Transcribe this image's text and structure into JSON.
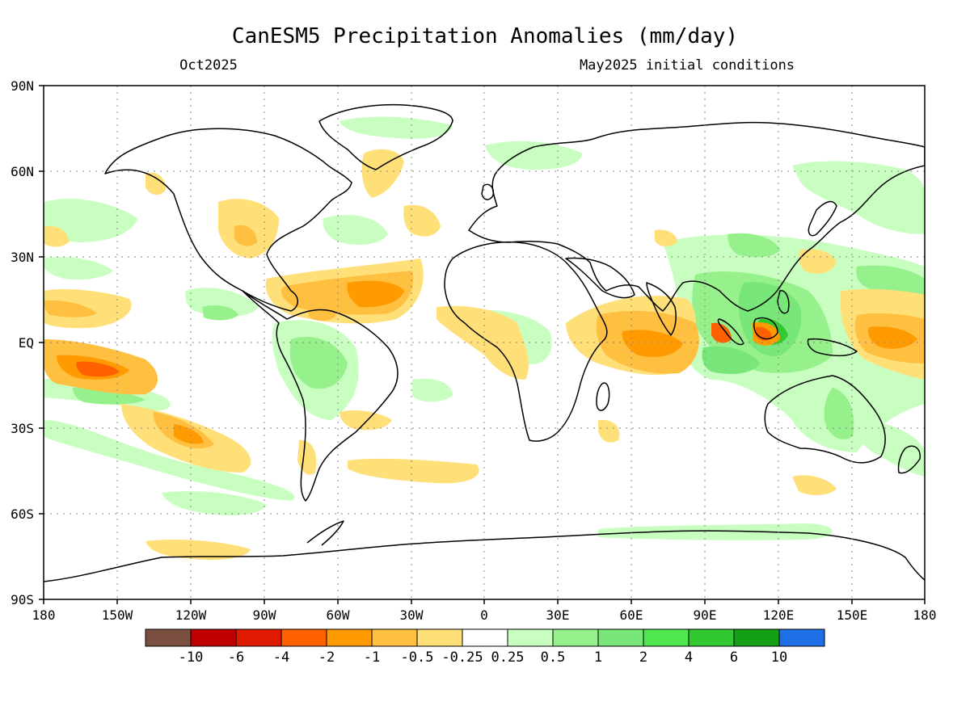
{
  "title": "CanESM5 Precipitation Anomalies (mm/day)",
  "subtitle_left": "Oct2025",
  "subtitle_right": "May2025 initial conditions",
  "lat_labels": [
    "90N",
    "60N",
    "30N",
    "EQ",
    "30S",
    "60S",
    "90S"
  ],
  "lon_labels": [
    "180",
    "150W",
    "120W",
    "90W",
    "60W",
    "30W",
    "0",
    "30E",
    "60E",
    "90E",
    "120E",
    "150E",
    "180"
  ],
  "colorbar": {
    "colors": [
      "#7b4f3f",
      "#c00000",
      "#e01a00",
      "#ff6000",
      "#ff9a00",
      "#ffbf40",
      "#ffe078",
      "#ffffff",
      "#c8ffc0",
      "#96f08c",
      "#78e678",
      "#50e650",
      "#32c832",
      "#14a014",
      "#1e6ee6"
    ],
    "tick_labels": [
      "-10",
      "-6",
      "-4",
      "-2",
      "-1",
      "-0.5",
      "-0.25",
      "0.25",
      "0.5",
      "1",
      "2",
      "4",
      "6",
      "10"
    ]
  },
  "anomaly_colors": {
    "dry_weak": "#ffe078",
    "dry_moderate": "#ffbf40",
    "dry_strong": "#ff9a00",
    "dry_very_strong": "#ff6000",
    "wet_weak": "#c8ffc0",
    "wet_moderate": "#96f08c",
    "wet_strong": "#78e678",
    "wet_very_strong": "#32c832"
  }
}
